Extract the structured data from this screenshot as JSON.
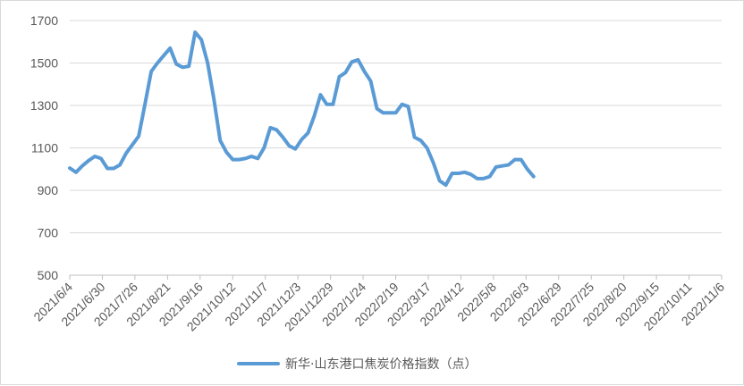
{
  "chart_data": {
    "type": "line",
    "title": "",
    "xlabel": "",
    "ylabel": "",
    "ylim": [
      500,
      1700
    ],
    "yticks": [
      500,
      700,
      900,
      1100,
      1300,
      1500,
      1700
    ],
    "grid": "horizontal",
    "legend_position": "bottom",
    "x_tick_labels": [
      "2021/6/4",
      "2021/6/30",
      "2021/7/26",
      "2021/8/21",
      "2021/9/16",
      "2021/10/12",
      "2021/11/7",
      "2021/12/3",
      "2021/12/29",
      "2022/1/24",
      "2022/2/19",
      "2022/3/17",
      "2022/4/12",
      "2022/5/8",
      "2022/6/3",
      "2022/6/29",
      "2022/7/25",
      "2022/8/20",
      "2022/9/15",
      "2022/10/11",
      "2022/11/6"
    ],
    "series": [
      {
        "name": "新华·山东港口焦炭价格指数（点）",
        "color": "#5b9bd5",
        "points": [
          [
            "2021/6/4",
            1005
          ],
          [
            "2021/6/9",
            985
          ],
          [
            "2021/6/14",
            1015
          ],
          [
            "2021/6/19",
            1040
          ],
          [
            "2021/6/24",
            1060
          ],
          [
            "2021/6/29",
            1050
          ],
          [
            "2021/7/4",
            1003
          ],
          [
            "2021/7/9",
            1003
          ],
          [
            "2021/7/14",
            1020
          ],
          [
            "2021/7/19",
            1075
          ],
          [
            "2021/7/24",
            1115
          ],
          [
            "2021/7/29",
            1155
          ],
          [
            "2021/8/3",
            1305
          ],
          [
            "2021/8/8",
            1460
          ],
          [
            "2021/8/13",
            1500
          ],
          [
            "2021/8/18",
            1535
          ],
          [
            "2021/8/23",
            1570
          ],
          [
            "2021/8/28",
            1495
          ],
          [
            "2021/9/2",
            1480
          ],
          [
            "2021/9/7",
            1485
          ],
          [
            "2021/9/12",
            1645
          ],
          [
            "2021/9/17",
            1610
          ],
          [
            "2021/9/22",
            1500
          ],
          [
            "2021/9/27",
            1330
          ],
          [
            "2021/10/2",
            1135
          ],
          [
            "2021/10/7",
            1080
          ],
          [
            "2021/10/12",
            1045
          ],
          [
            "2021/10/17",
            1045
          ],
          [
            "2021/10/22",
            1050
          ],
          [
            "2021/10/27",
            1060
          ],
          [
            "2021/11/1",
            1050
          ],
          [
            "2021/11/6",
            1100
          ],
          [
            "2021/11/11",
            1195
          ],
          [
            "2021/11/16",
            1185
          ],
          [
            "2021/11/21",
            1150
          ],
          [
            "2021/11/26",
            1110
          ],
          [
            "2021/12/1",
            1095
          ],
          [
            "2021/12/6",
            1140
          ],
          [
            "2021/12/11",
            1170
          ],
          [
            "2021/12/16",
            1250
          ],
          [
            "2021/12/21",
            1350
          ],
          [
            "2021/12/26",
            1305
          ],
          [
            "2021/12/31",
            1305
          ],
          [
            "2022/1/5",
            1435
          ],
          [
            "2022/1/10",
            1455
          ],
          [
            "2022/1/15",
            1505
          ],
          [
            "2022/1/20",
            1515
          ],
          [
            "2022/1/25",
            1460
          ],
          [
            "2022/1/30",
            1415
          ],
          [
            "2022/2/4",
            1285
          ],
          [
            "2022/2/9",
            1265
          ],
          [
            "2022/2/14",
            1265
          ],
          [
            "2022/2/19",
            1265
          ],
          [
            "2022/2/24",
            1305
          ],
          [
            "2022/3/1",
            1295
          ],
          [
            "2022/3/6",
            1150
          ],
          [
            "2022/3/11",
            1135
          ],
          [
            "2022/3/16",
            1100
          ],
          [
            "2022/3/21",
            1030
          ],
          [
            "2022/3/26",
            945
          ],
          [
            "2022/3/31",
            925
          ],
          [
            "2022/4/5",
            980
          ],
          [
            "2022/4/10",
            980
          ],
          [
            "2022/4/15",
            985
          ],
          [
            "2022/4/20",
            975
          ],
          [
            "2022/4/25",
            955
          ],
          [
            "2022/4/30",
            955
          ],
          [
            "2022/5/5",
            965
          ],
          [
            "2022/5/10",
            1010
          ],
          [
            "2022/5/15",
            1015
          ],
          [
            "2022/5/20",
            1020
          ],
          [
            "2022/5/25",
            1045
          ],
          [
            "2022/5/30",
            1045
          ],
          [
            "2022/6/4",
            1000
          ],
          [
            "2022/6/9",
            965
          ]
        ]
      }
    ]
  }
}
